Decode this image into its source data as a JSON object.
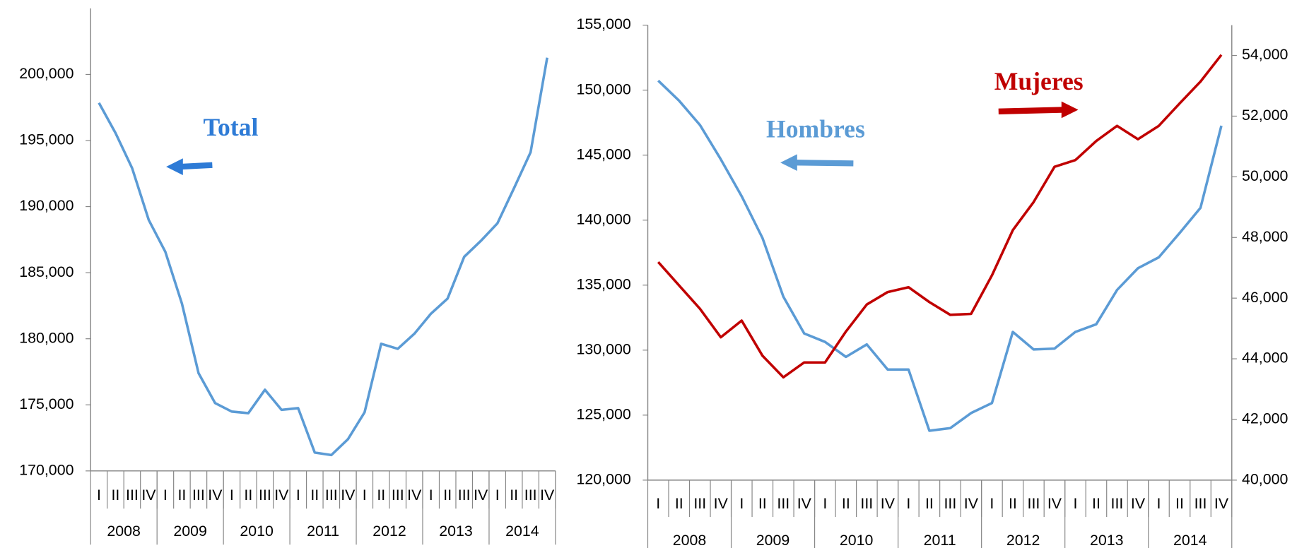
{
  "chart_data": [
    {
      "type": "line",
      "categories": [
        "I",
        "II",
        "III",
        "IV",
        "I",
        "II",
        "III",
        "IV",
        "I",
        "II",
        "III",
        "IV",
        "I",
        "II",
        "III",
        "IV",
        "I",
        "II",
        "III",
        "IV",
        "I",
        "II",
        "III",
        "IV",
        "I",
        "II",
        "III",
        "IV"
      ],
      "years": [
        "2008",
        "2009",
        "2010",
        "2011",
        "2012",
        "2013",
        "2014"
      ],
      "ylim": [
        170000,
        205000
      ],
      "yticks": [
        {
          "value": 170000,
          "label": "170,000"
        },
        {
          "value": 175000,
          "label": "175,000"
        },
        {
          "value": 180000,
          "label": "180,000"
        },
        {
          "value": 185000,
          "label": "185,000"
        },
        {
          "value": 190000,
          "label": "190,000"
        },
        {
          "value": 195000,
          "label": "195,000"
        },
        {
          "value": 200000,
          "label": "200,000"
        }
      ],
      "series": [
        {
          "name": "Total",
          "color": "#5b9bd5",
          "label_color": "#2e7bd6",
          "values": [
            197850,
            195570,
            192910,
            188990,
            186580,
            182660,
            177400,
            175130,
            174490,
            174370,
            176140,
            174620,
            174750,
            171390,
            171200,
            172400,
            174430,
            179620,
            179240,
            180380,
            181900,
            183040,
            186200,
            187400,
            188730,
            191390,
            194110,
            201270
          ]
        }
      ]
    },
    {
      "type": "line",
      "categories": [
        "I",
        "II",
        "III",
        "IV",
        "I",
        "II",
        "III",
        "IV",
        "I",
        "II",
        "III",
        "IV",
        "I",
        "II",
        "III",
        "IV",
        "I",
        "II",
        "III",
        "IV",
        "I",
        "II",
        "III",
        "IV",
        "I",
        "II",
        "III",
        "IV"
      ],
      "years": [
        "2008",
        "2009",
        "2010",
        "2011",
        "2012",
        "2013",
        "2014"
      ],
      "ylim": [
        120000,
        155000
      ],
      "yticks": [
        {
          "value": 120000,
          "label": "120,000"
        },
        {
          "value": 125000,
          "label": "125,000"
        },
        {
          "value": 130000,
          "label": "130,000"
        },
        {
          "value": 135000,
          "label": "135,000"
        },
        {
          "value": 140000,
          "label": "140,000"
        },
        {
          "value": 145000,
          "label": "145,000"
        },
        {
          "value": 150000,
          "label": "150,000"
        },
        {
          "value": 155000,
          "label": "155,000"
        }
      ],
      "y2lim": [
        40000,
        55000
      ],
      "y2ticks": [
        {
          "value": 40000,
          "label": "40,000"
        },
        {
          "value": 42000,
          "label": "42,000"
        },
        {
          "value": 44000,
          "label": "44,000"
        },
        {
          "value": 46000,
          "label": "46,000"
        },
        {
          "value": 48000,
          "label": "48,000"
        },
        {
          "value": 50000,
          "label": "50,000"
        },
        {
          "value": 52000,
          "label": "52,000"
        },
        {
          "value": 54000,
          "label": "54,000"
        }
      ],
      "series": [
        {
          "name": "Hombres",
          "color": "#5b9bd5",
          "label_color": "#5b9bd5",
          "values": [
            150730,
            149190,
            147320,
            144680,
            141840,
            138620,
            134110,
            131280,
            130630,
            129480,
            130440,
            128510,
            128510,
            123800,
            124000,
            125160,
            125930,
            131400,
            130050,
            130120,
            131400,
            131990,
            134630,
            136300,
            137140,
            139010,
            140950,
            147260
          ]
        },
        {
          "name": "Mujeres",
          "color": "#c00000",
          "label_color": "#c00000",
          "axis": "y2",
          "values": [
            47190,
            46420,
            45650,
            44710,
            45260,
            44100,
            43390,
            43880,
            43880,
            44900,
            45790,
            46200,
            46360,
            45870,
            45450,
            45480,
            46750,
            48240,
            49170,
            50330,
            50550,
            51180,
            51680,
            51240,
            51680,
            52420,
            53140,
            54020
          ]
        }
      ]
    }
  ]
}
